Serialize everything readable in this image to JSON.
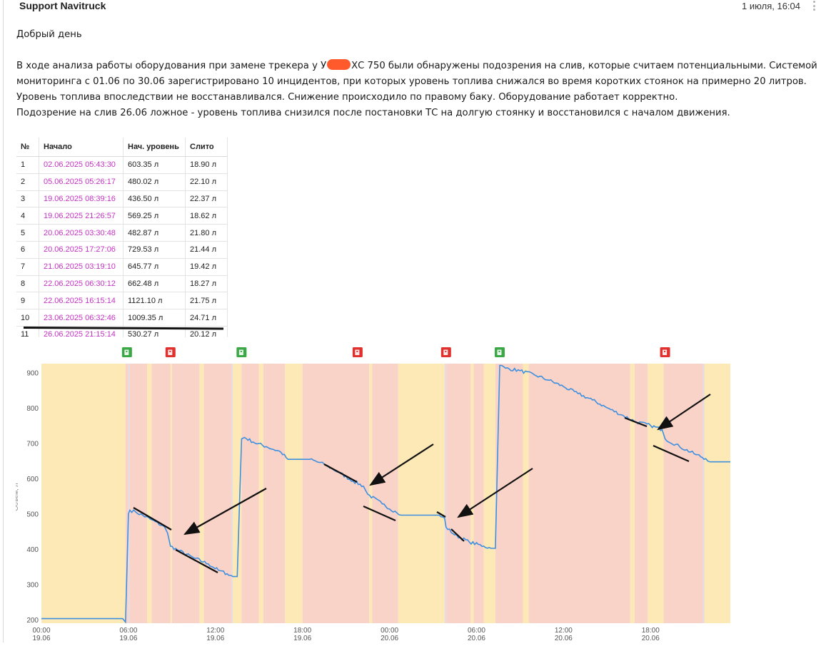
{
  "message": {
    "sender": "Support Navitruck",
    "time": "1 июля, 16:04",
    "greeting": "Добрый день",
    "para1_a": "В ходе анализа работы оборудования при замене трекера у У",
    "para1_b": "ХС 750 были обнаружены подозрения на слив, которые считаем потенциальными. Системой мониторинга с 01.06 по 30.06 зарегистрировано 10 инцидентов, при которых уровень топлива снижался во время коротких стоянок на примерно 20 литров. Уровень топлива впоследствии не восстанавливался. Снижение происходило по правому баку. Оборудование работает корректно.",
    "para2": "Подозрение на слив 26.06 ложное - уровень топлива снизился после постановки ТС на долгую стоянку и восстановился с началом движения."
  },
  "table": {
    "headers": [
      "№",
      "Начало",
      "Нач. уровень",
      "Слито"
    ],
    "rows": [
      [
        "1",
        "02.06.2025 05:43:30",
        "603.35 л",
        "18.90 л"
      ],
      [
        "2",
        "05.06.2025 05:26:17",
        "480.02 л",
        "22.10 л"
      ],
      [
        "3",
        "19.06.2025 08:39:16",
        "436.50 л",
        "22.37 л"
      ],
      [
        "4",
        "19.06.2025 21:26:57",
        "569.25 л",
        "18.62 л"
      ],
      [
        "5",
        "20.06.2025 03:30:48",
        "482.87 л",
        "21.80 л"
      ],
      [
        "6",
        "20.06.2025 17:27:06",
        "729.53 л",
        "21.44 л"
      ],
      [
        "7",
        "21.06.2025 03:19:10",
        "645.77 л",
        "19.42 л"
      ],
      [
        "8",
        "22.06.2025 06:30:12",
        "662.48 л",
        "18.27 л"
      ],
      [
        "9",
        "22.06.2025 16:15:14",
        "1121.10 л",
        "21.75 л"
      ],
      [
        "10",
        "23.06.2025 06:32:46",
        "1009.35 л",
        "24.71 л"
      ],
      [
        "11",
        "26.06.2025 21:15:14",
        "530.27 л",
        "20.12 л"
      ]
    ]
  },
  "chart_data": {
    "type": "line",
    "ylabel": "Объем, л",
    "ylim": [
      190,
      925
    ],
    "yticks": [
      200,
      300,
      400,
      500,
      600,
      700,
      800,
      900
    ],
    "xlim_hours": [
      0,
      47.5
    ],
    "xticks": [
      {
        "h": 0,
        "time": "00:00",
        "date": "19.06"
      },
      {
        "h": 6,
        "time": "06:00",
        "date": "19.06"
      },
      {
        "h": 12,
        "time": "12:00",
        "date": "19.06"
      },
      {
        "h": 18,
        "time": "18:00",
        "date": "19.06"
      },
      {
        "h": 24,
        "time": "00:00",
        "date": "20.06"
      },
      {
        "h": 30,
        "time": "06:00",
        "date": "20.06"
      },
      {
        "h": 36,
        "time": "12:00",
        "date": "20.06"
      },
      {
        "h": 42,
        "time": "18:00",
        "date": "20.06"
      }
    ],
    "colors": {
      "line": "#3d8fe0",
      "drive": "#fde9b6",
      "stop": "#fad3c8",
      "refuel_icon": "#3aa845",
      "drain_icon": "#e0312e"
    },
    "series": [
      {
        "points": [
          [
            0,
            203
          ],
          [
            5.6,
            203
          ],
          [
            5.8,
            193
          ],
          [
            6.0,
            500
          ],
          [
            6.1,
            510
          ],
          [
            6.5,
            505
          ],
          [
            7.5,
            485
          ],
          [
            8.5,
            462
          ],
          [
            8.7,
            445
          ],
          [
            8.9,
            408
          ],
          [
            9.5,
            395
          ],
          [
            10.5,
            375
          ],
          [
            11.5,
            358
          ],
          [
            12.2,
            340
          ],
          [
            12.8,
            330
          ],
          [
            13.2,
            322
          ],
          [
            13.5,
            322
          ],
          [
            13.8,
            712
          ],
          [
            14.0,
            716
          ],
          [
            14.6,
            703
          ],
          [
            15.5,
            690
          ],
          [
            16.5,
            675
          ],
          [
            17.0,
            654
          ],
          [
            18.5,
            654
          ],
          [
            19.5,
            640
          ],
          [
            20.5,
            617
          ],
          [
            21.5,
            592
          ],
          [
            22.2,
            578
          ],
          [
            22.5,
            555
          ],
          [
            23.5,
            528
          ],
          [
            24.5,
            503
          ],
          [
            24.8,
            496
          ],
          [
            27.3,
            496
          ],
          [
            27.8,
            487
          ],
          [
            27.9,
            462
          ],
          [
            28.5,
            440
          ],
          [
            29.5,
            420
          ],
          [
            30.5,
            408
          ],
          [
            31.0,
            402
          ],
          [
            31.3,
            402
          ],
          [
            31.6,
            920
          ],
          [
            32.0,
            912
          ],
          [
            33.0,
            905
          ],
          [
            34.0,
            893
          ],
          [
            35.0,
            878
          ],
          [
            36.0,
            860
          ],
          [
            37.0,
            840
          ],
          [
            38.0,
            822
          ],
          [
            39.0,
            800
          ],
          [
            40.0,
            780
          ],
          [
            41.0,
            760
          ],
          [
            42.0,
            750
          ],
          [
            42.8,
            738
          ],
          [
            43.0,
            712
          ],
          [
            44.0,
            690
          ],
          [
            45.0,
            670
          ],
          [
            45.8,
            656
          ],
          [
            46.1,
            647
          ],
          [
            47.5,
            647
          ]
        ]
      }
    ],
    "bands": [
      {
        "from": 0,
        "to": 5.8,
        "type": "drive"
      },
      {
        "from": 5.8,
        "to": 6.0,
        "type": "stop"
      },
      {
        "from": 6.0,
        "to": 7.3,
        "type": "stop"
      },
      {
        "from": 7.3,
        "to": 7.6,
        "type": "drive"
      },
      {
        "from": 7.6,
        "to": 8.9,
        "type": "stop"
      },
      {
        "from": 8.9,
        "to": 9.0,
        "type": "drive"
      },
      {
        "from": 9.0,
        "to": 10.9,
        "type": "stop"
      },
      {
        "from": 10.9,
        "to": 11.2,
        "type": "drive"
      },
      {
        "from": 11.2,
        "to": 13.1,
        "type": "stop"
      },
      {
        "from": 13.1,
        "to": 13.8,
        "type": "drive"
      },
      {
        "from": 13.8,
        "to": 15.0,
        "type": "stop"
      },
      {
        "from": 15.0,
        "to": 15.3,
        "type": "drive"
      },
      {
        "from": 15.3,
        "to": 16.8,
        "type": "stop"
      },
      {
        "from": 16.8,
        "to": 18.0,
        "type": "drive"
      },
      {
        "from": 18.0,
        "to": 22.6,
        "type": "stop"
      },
      {
        "from": 22.6,
        "to": 22.8,
        "type": "drive"
      },
      {
        "from": 22.8,
        "to": 24.6,
        "type": "stop"
      },
      {
        "from": 24.6,
        "to": 27.8,
        "type": "drive"
      },
      {
        "from": 27.8,
        "to": 28.0,
        "type": "stop"
      },
      {
        "from": 28.0,
        "to": 29.6,
        "type": "stop"
      },
      {
        "from": 29.6,
        "to": 29.8,
        "type": "drive"
      },
      {
        "from": 29.8,
        "to": 30.5,
        "type": "stop"
      },
      {
        "from": 30.5,
        "to": 31.3,
        "type": "drive"
      },
      {
        "from": 31.3,
        "to": 33.2,
        "type": "stop"
      },
      {
        "from": 33.2,
        "to": 33.6,
        "type": "drive"
      },
      {
        "from": 33.6,
        "to": 40.6,
        "type": "stop"
      },
      {
        "from": 40.6,
        "to": 40.9,
        "type": "drive"
      },
      {
        "from": 40.9,
        "to": 41.8,
        "type": "stop"
      },
      {
        "from": 41.8,
        "to": 42.9,
        "type": "drive"
      },
      {
        "from": 42.9,
        "to": 45.7,
        "type": "stop"
      },
      {
        "from": 45.7,
        "to": 47.5,
        "type": "drive"
      }
    ],
    "events": [
      {
        "h": 5.9,
        "kind": "refuel"
      },
      {
        "h": 8.9,
        "kind": "drain"
      },
      {
        "h": 13.8,
        "kind": "refuel"
      },
      {
        "h": 21.8,
        "kind": "drain"
      },
      {
        "h": 27.9,
        "kind": "drain"
      },
      {
        "h": 31.6,
        "kind": "refuel"
      },
      {
        "h": 43.0,
        "kind": "drain"
      }
    ]
  }
}
